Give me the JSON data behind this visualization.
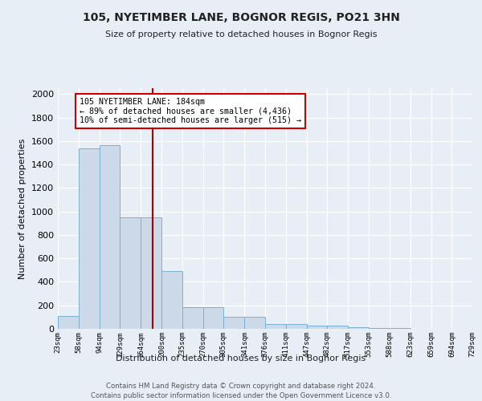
{
  "title": "105, NYETIMBER LANE, BOGNOR REGIS, PO21 3HN",
  "subtitle": "Size of property relative to detached houses in Bognor Regis",
  "xlabel": "Distribution of detached houses by size in Bognor Regis",
  "ylabel": "Number of detached properties",
  "bin_edges": [
    23,
    58,
    94,
    129,
    164,
    200,
    235,
    270,
    305,
    341,
    376,
    411,
    447,
    482,
    517,
    553,
    588,
    623,
    659,
    694,
    729
  ],
  "bar_heights": [
    110,
    1540,
    1565,
    950,
    950,
    490,
    185,
    185,
    100,
    100,
    40,
    40,
    25,
    25,
    15,
    5,
    5,
    3,
    3,
    3
  ],
  "bar_color": "#ccd9e8",
  "bar_edge_color": "#7aafd4",
  "vline_x": 184,
  "vline_color": "#aa0000",
  "annotation_text": "105 NYETIMBER LANE: 184sqm\n← 89% of detached houses are smaller (4,436)\n10% of semi-detached houses are larger (515) →",
  "annotation_box_facecolor": "#ffffff",
  "annotation_box_edgecolor": "#cc0000",
  "ylim": [
    0,
    2050
  ],
  "yticks": [
    0,
    200,
    400,
    600,
    800,
    1000,
    1200,
    1400,
    1600,
    1800,
    2000
  ],
  "bg_color": "#e8eef5",
  "plot_bg_color": "#e8eef5",
  "footer1": "Contains HM Land Registry data © Crown copyright and database right 2024.",
  "footer2": "Contains public sector information licensed under the Open Government Licence v3.0."
}
